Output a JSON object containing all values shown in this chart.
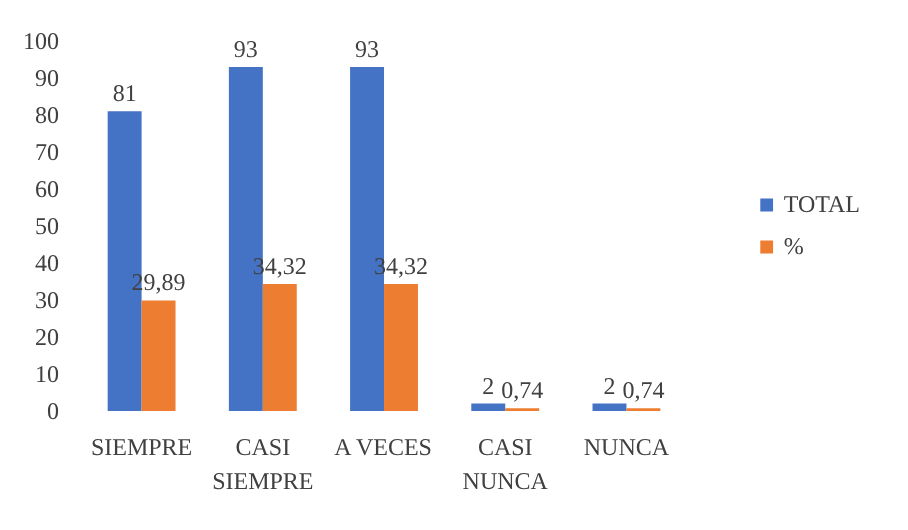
{
  "chart_data": {
    "type": "bar",
    "categories": [
      "SIEMPRE",
      "CASI SIEMPRE",
      "A VECES",
      "CASI NUNCA",
      "NUNCA"
    ],
    "series": [
      {
        "name": "TOTAL",
        "color": "#4472c4",
        "values": [
          81,
          93,
          93,
          2,
          2
        ],
        "value_labels": [
          "81",
          "93",
          "93",
          "2",
          "2"
        ]
      },
      {
        "name": "%",
        "color": "#ed7d31",
        "values": [
          29.89,
          34.32,
          34.32,
          0.74,
          0.74
        ],
        "value_labels": [
          "29,89",
          "34,32",
          "34,32",
          "0,74",
          "0,74"
        ]
      }
    ],
    "ylim": [
      0,
      100
    ],
    "yticks": [
      0,
      10,
      20,
      30,
      40,
      50,
      60,
      70,
      80,
      90,
      100
    ],
    "grid": false,
    "legend": "right"
  }
}
